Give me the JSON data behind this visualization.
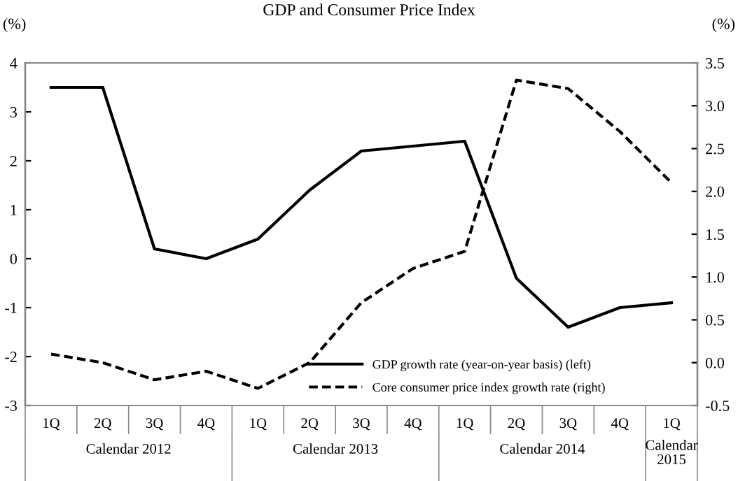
{
  "chart_data": {
    "type": "line",
    "title": "GDP and Consumer Price Index",
    "ylabel": "(%)",
    "y2label": "(%)",
    "categories": [
      "1Q",
      "2Q",
      "3Q",
      "4Q",
      "1Q",
      "2Q",
      "3Q",
      "4Q",
      "1Q",
      "2Q",
      "3Q",
      "4Q",
      "1Q"
    ],
    "series": [
      {
        "name": "GDP growth rate (year-on-year basis) (left)",
        "color": "#000000",
        "line_style": "solid",
        "values": [
          3.5,
          3.5,
          0.2,
          0.0,
          0.4,
          1.4,
          2.2,
          2.3,
          2.4,
          -0.4,
          -1.4,
          -1.0,
          -0.9
        ]
      },
      {
        "name": "Core consumer price index growth rate (right)",
        "color": "#000000",
        "line_style": "dashed",
        "axis": "y2",
        "values": [
          0.1,
          0.0,
          -0.2,
          -0.1,
          -0.3,
          0.0,
          0.7,
          1.1,
          1.3,
          3.3,
          3.2,
          2.7,
          2.1
        ]
      }
    ],
    "ylim": [
      -3,
      4
    ],
    "yticks": [
      -3,
      -2,
      -1,
      0,
      1,
      2,
      3,
      4
    ],
    "y2lim": [
      -0.5,
      3.5
    ],
    "y2ticks": [
      {
        "value": -0.5,
        "label": "-0.5"
      },
      {
        "value": 0,
        "label": "0.0"
      },
      {
        "value": 0.5,
        "label": "0.5"
      },
      {
        "value": 1,
        "label": "1.0"
      },
      {
        "value": 1.5,
        "label": "1.5"
      },
      {
        "value": 2,
        "label": "2.0"
      },
      {
        "value": 2.5,
        "label": "2.5"
      },
      {
        "value": 3,
        "label": "3.0"
      },
      {
        "value": 3.5,
        "label": "3.5"
      }
    ],
    "annotations": [
      "Calendar 2012",
      "Calendar 2013",
      "Calendar 2014",
      "Calendar\n2015"
    ],
    "legend": "bottom right",
    "grid": false,
    "marker": "none"
  }
}
